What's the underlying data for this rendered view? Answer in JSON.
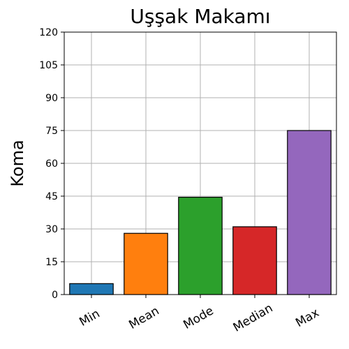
{
  "chart_data": {
    "type": "bar",
    "title": "Uşşak Makamı",
    "xlabel": "",
    "ylabel": "Koma",
    "categories": [
      "Min",
      "Mean",
      "Mode",
      "Median",
      "Max"
    ],
    "values": [
      5,
      28,
      44.5,
      31,
      75
    ],
    "colors": [
      "#1f77b4",
      "#ff7f0e",
      "#2ca02c",
      "#d62728",
      "#9467bd"
    ],
    "ylim": [
      0,
      120
    ],
    "yticks": [
      0,
      15,
      30,
      45,
      60,
      75,
      90,
      105,
      120
    ],
    "grid": true
  }
}
